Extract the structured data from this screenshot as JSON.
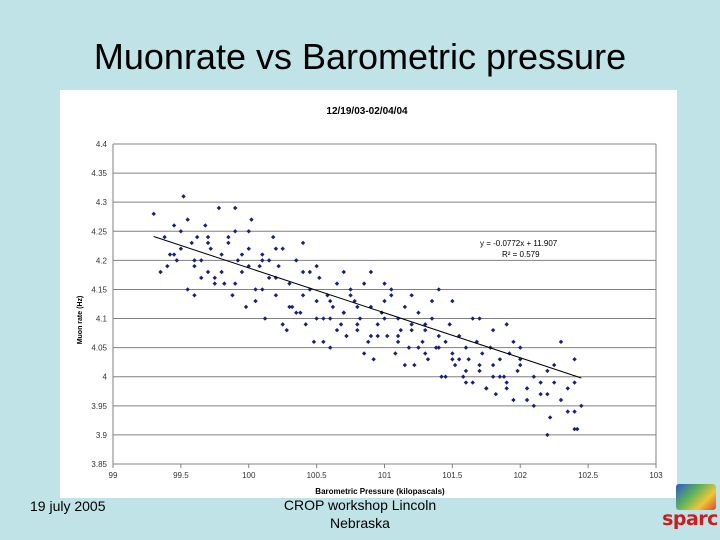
{
  "slide": {
    "title": "Muonrate vs Barometric pressure",
    "footer_date": "19 july 2005",
    "footer_center": "CROP workshop Lincoln Nebraska",
    "logo_text": "sparc"
  },
  "chart_data": {
    "type": "scatter",
    "title": "12/19/03-02/04/04",
    "xlabel": "Barometric Pressure (kilopascals)",
    "ylabel": "Muon rate (Hz)",
    "xlim": [
      99,
      103
    ],
    "ylim": [
      3.85,
      4.4
    ],
    "x_ticks": [
      "99",
      "99.5",
      "100",
      "100.5",
      "101",
      "101.5",
      "102",
      "102.5",
      "103"
    ],
    "y_ticks": [
      "3.85",
      "3.9",
      "3.95",
      "4",
      "4.05",
      "4.1",
      "4.15",
      "4.2",
      "4.25",
      "4.3",
      "4.35",
      "4.4"
    ],
    "grid": "horizontal",
    "point_color": "#1a1f7a",
    "trendline": {
      "slope": -0.0772,
      "intercept": 11.907,
      "x_range": [
        99.3,
        102.45
      ],
      "equation_text": "y = -0.0772x + 11.907",
      "r2_text": "R² = 0.579"
    },
    "series": [
      {
        "x": [
          99.3,
          99.35,
          99.38,
          99.4,
          99.42,
          99.45,
          99.47,
          99.5,
          99.52,
          99.55,
          99.58,
          99.6,
          99.62,
          99.65,
          99.68,
          99.7,
          99.72,
          99.75,
          99.78,
          99.8,
          99.82,
          99.85,
          99.88,
          99.9,
          99.92,
          99.95,
          99.98,
          100.0,
          100.02,
          100.05,
          100.08,
          100.1,
          100.12,
          100.15,
          100.18,
          100.2,
          100.22,
          100.25,
          100.28,
          100.3,
          100.32,
          100.35,
          100.38,
          100.4,
          100.42,
          100.45,
          100.48,
          100.5,
          100.52,
          100.55,
          100.58,
          100.6,
          100.62,
          100.65,
          100.68,
          100.7,
          100.72,
          100.75,
          100.78,
          100.8,
          100.82,
          100.85,
          100.88,
          100.9,
          100.92,
          100.95,
          100.98,
          101.0,
          101.02,
          101.05,
          101.08,
          101.1,
          101.12,
          101.15,
          101.18,
          101.2,
          101.22,
          101.25,
          101.28,
          101.3,
          101.32,
          101.35,
          101.38,
          101.4,
          101.42,
          101.45,
          101.48,
          101.5,
          101.52,
          101.55,
          101.58,
          101.6,
          101.62,
          101.65,
          101.68,
          101.7,
          101.72,
          101.75,
          101.78,
          101.8,
          101.82,
          101.85,
          101.88,
          101.9,
          101.92,
          101.95,
          101.98,
          102.0,
          102.05,
          102.1,
          102.15,
          102.2,
          102.22,
          102.25,
          102.3,
          102.35,
          102.4,
          102.42,
          102.45,
          99.5,
          99.6,
          99.7,
          99.8,
          99.9,
          100.0,
          100.1,
          100.2,
          100.3,
          100.4,
          100.5,
          100.6,
          100.7,
          100.8,
          100.9,
          101.0,
          101.1,
          101.2,
          101.3,
          101.4,
          101.5,
          101.6,
          101.7,
          101.8,
          101.9,
          102.0,
          102.2,
          102.4,
          99.45,
          99.75,
          100.05,
          100.35,
          100.65,
          100.95,
          101.25,
          101.55,
          101.85,
          102.15,
          99.55,
          99.85,
          100.15,
          100.45,
          100.75,
          101.05,
          101.35,
          101.65,
          101.95,
          102.25,
          99.65,
          99.95,
          100.25,
          100.55,
          100.85,
          101.15,
          101.45,
          101.75,
          102.05,
          102.35,
          100.0,
          100.5,
          101.0,
          101.5,
          102.0,
          99.9,
          100.4,
          100.9,
          101.4,
          101.9,
          102.4,
          99.6,
          100.1,
          100.6,
          101.1,
          101.6,
          102.1,
          102.3,
          102.2,
          102.4,
          99.7,
          100.2,
          100.7,
          101.2,
          101.7,
          100.8,
          101.3,
          101.8
        ],
        "y": [
          4.28,
          4.18,
          4.24,
          4.19,
          4.21,
          4.26,
          4.2,
          4.22,
          4.31,
          4.15,
          4.23,
          4.19,
          4.24,
          4.2,
          4.26,
          4.18,
          4.22,
          4.17,
          4.29,
          4.21,
          4.16,
          4.23,
          4.14,
          4.25,
          4.2,
          4.18,
          4.12,
          4.22,
          4.27,
          4.15,
          4.19,
          4.21,
          4.1,
          4.17,
          4.24,
          4.14,
          4.19,
          4.22,
          4.08,
          4.16,
          4.12,
          4.2,
          4.11,
          4.18,
          4.09,
          4.15,
          4.06,
          4.13,
          4.17,
          4.1,
          4.14,
          4.05,
          4.12,
          4.16,
          4.09,
          4.11,
          4.07,
          4.14,
          4.13,
          4.08,
          4.1,
          4.16,
          4.06,
          4.12,
          4.03,
          4.09,
          4.11,
          4.13,
          4.07,
          4.15,
          4.04,
          4.1,
          4.08,
          4.12,
          4.05,
          4.09,
          4.02,
          4.11,
          4.06,
          4.08,
          4.03,
          4.1,
          4.05,
          4.07,
          4.0,
          4.06,
          4.09,
          4.04,
          4.02,
          4.07,
          4.0,
          4.05,
          4.03,
          3.99,
          4.06,
          4.01,
          4.04,
          3.98,
          4.05,
          4.02,
          3.97,
          4.03,
          4.0,
          3.99,
          4.04,
          3.96,
          4.01,
          4.02,
          3.98,
          4.0,
          3.97,
          4.01,
          3.93,
          3.99,
          3.96,
          3.98,
          3.94,
          3.91,
          3.95,
          4.25,
          4.2,
          4.23,
          4.18,
          4.16,
          4.19,
          4.15,
          4.17,
          4.12,
          4.14,
          4.1,
          4.13,
          4.11,
          4.09,
          4.07,
          4.1,
          4.06,
          4.08,
          4.04,
          4.05,
          4.03,
          4.01,
          4.02,
          4.0,
          3.98,
          4.03,
          3.97,
          3.99,
          4.21,
          4.16,
          4.13,
          4.11,
          4.08,
          4.07,
          4.05,
          4.03,
          4.0,
          3.99,
          4.27,
          4.24,
          4.2,
          4.18,
          4.15,
          4.14,
          4.13,
          4.1,
          4.06,
          4.02,
          4.17,
          4.21,
          4.09,
          4.06,
          4.04,
          4.02,
          4.0,
          3.98,
          3.96,
          3.94,
          4.25,
          4.19,
          4.16,
          4.13,
          4.05,
          4.29,
          4.23,
          4.18,
          4.15,
          4.09,
          4.03,
          4.14,
          4.2,
          4.1,
          4.07,
          3.99,
          3.95,
          4.06,
          3.9,
          3.91,
          4.24,
          4.22,
          4.18,
          4.14,
          4.1,
          4.12,
          4.09,
          4.08
        ]
      }
    ]
  }
}
